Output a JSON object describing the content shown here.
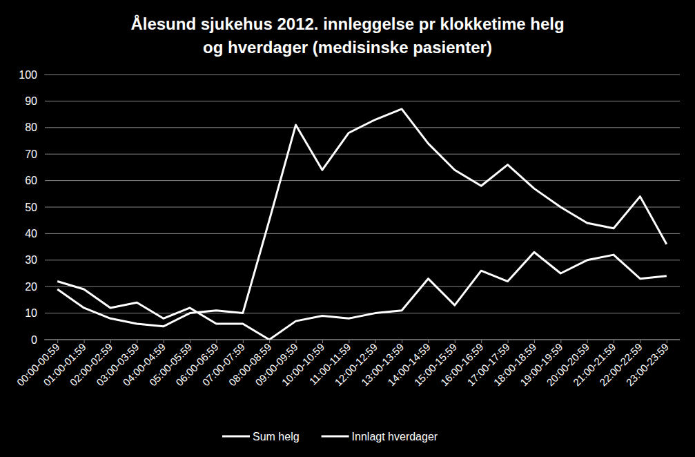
{
  "chart_data": {
    "type": "line",
    "title": [
      "Ålesund sjukehus 2012. innleggelse pr klokketime helg",
      "og hverdager (medisinske pasienter)"
    ],
    "categories": [
      "00:00-00:59",
      "01:00-01:59",
      "02:00-02:59",
      "03:00-03:59",
      "04:00-04:59",
      "05:00-05:59",
      "06:00-06:59",
      "07:00-07:59",
      "08:00-08:59",
      "09:00-09:59",
      "10:00-10:59",
      "11:00-11:59",
      "12:00-12:59",
      "13:00-13:59",
      "14:00-14:59",
      "15:00-15:59",
      "16:00-16:59",
      "17:00-17:59",
      "18:00-18:59",
      "19:00-19:59",
      "20:00-20:59",
      "21:00-21:59",
      "22:00-22:59",
      "23:00-23:59"
    ],
    "series": [
      {
        "name": "Sum helg",
        "color": "#ffffff",
        "values": [
          22,
          19,
          12,
          14,
          8,
          12,
          6,
          6,
          0,
          7,
          9,
          8,
          10,
          11,
          23,
          13,
          26,
          22,
          33,
          25,
          30,
          32,
          23,
          24
        ]
      },
      {
        "name": "Innlagt hverdager",
        "color": "#ffffff",
        "values": [
          19,
          12,
          8,
          6,
          5,
          10,
          11,
          10,
          45,
          81,
          64,
          78,
          83,
          87,
          74,
          64,
          58,
          66,
          57,
          50,
          44,
          42,
          54,
          36
        ]
      }
    ],
    "ylim": [
      0,
      100
    ],
    "yticks": [
      0,
      10,
      20,
      30,
      40,
      50,
      60,
      70,
      80,
      90,
      100
    ],
    "grid": true,
    "legend": "bottom"
  }
}
